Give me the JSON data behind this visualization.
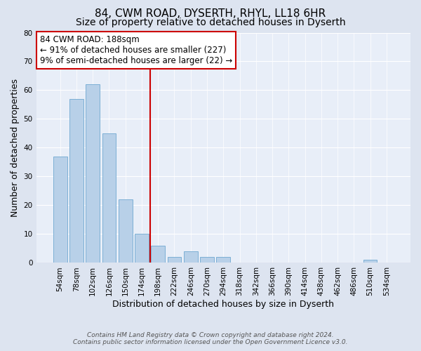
{
  "title": "84, CWM ROAD, DYSERTH, RHYL, LL18 6HR",
  "subtitle": "Size of property relative to detached houses in Dyserth",
  "xlabel": "Distribution of detached houses by size in Dyserth",
  "ylabel": "Number of detached properties",
  "bin_labels": [
    "54sqm",
    "78sqm",
    "102sqm",
    "126sqm",
    "150sqm",
    "174sqm",
    "198sqm",
    "222sqm",
    "246sqm",
    "270sqm",
    "294sqm",
    "318sqm",
    "342sqm",
    "366sqm",
    "390sqm",
    "414sqm",
    "438sqm",
    "462sqm",
    "486sqm",
    "510sqm",
    "534sqm"
  ],
  "bar_values": [
    37,
    57,
    62,
    45,
    22,
    10,
    6,
    2,
    4,
    2,
    2,
    0,
    0,
    0,
    0,
    0,
    0,
    0,
    0,
    1,
    0
  ],
  "bar_color": "#b8d0e8",
  "bar_edge_color": "#6fa8d0",
  "background_color": "#dde4f0",
  "plot_bg_color": "#e8eef8",
  "grid_color": "#ffffff",
  "vline_color": "#cc0000",
  "vline_pos": 6,
  "annotation_title": "84 CWM ROAD: 188sqm",
  "annotation_line1": "← 91% of detached houses are smaller (227)",
  "annotation_line2": "9% of semi-detached houses are larger (22) →",
  "annotation_box_color": "#ffffff",
  "annotation_box_edge": "#cc0000",
  "ylim": [
    0,
    80
  ],
  "yticks": [
    0,
    10,
    20,
    30,
    40,
    50,
    60,
    70,
    80
  ],
  "footer1": "Contains HM Land Registry data © Crown copyright and database right 2024.",
  "footer2": "Contains public sector information licensed under the Open Government Licence v3.0.",
  "title_fontsize": 11,
  "subtitle_fontsize": 10,
  "tick_fontsize": 7.5,
  "ylabel_fontsize": 9,
  "xlabel_fontsize": 9,
  "annotation_fontsize": 8.5
}
